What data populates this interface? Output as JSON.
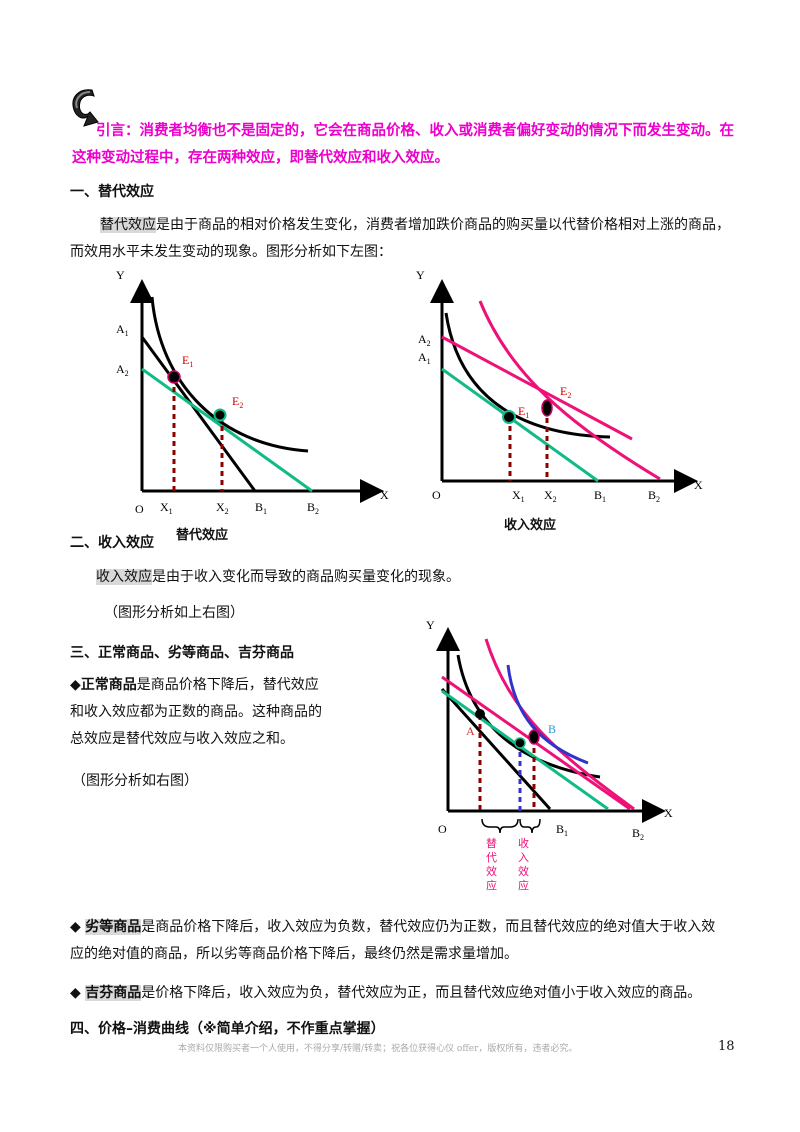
{
  "intro": "引言：消费者均衡也不是固定的，它会在商品价格、收入或消费者偏好变动的情况下而发生变动。在这种变动过程中，存在两种效应，即替代效应和收入效应。",
  "s1": {
    "heading": "一、替代效应",
    "term": "替代效应",
    "text1": "是由于商品的相对价格发生变化，消费者增加跌价商品的购买量以代替价格相对上涨的商品，",
    "text2": "而效用水平未发生变动的现象。图形分析如下左图："
  },
  "fig1": {
    "caption": "替代效应",
    "y": "Y",
    "x": "X",
    "o": "O",
    "A1": "A",
    "A1s": "1",
    "A2": "A",
    "A2s": "2",
    "E1": "E",
    "E1s": "1",
    "E2": "E",
    "E2s": "2",
    "X1": "X",
    "X1s": "1",
    "X2": "X",
    "X2s": "2",
    "B1": "B",
    "B1s": "1",
    "B2": "B",
    "B2s": "2"
  },
  "fig2": {
    "caption": "收入效应",
    "y": "Y",
    "x": "X",
    "o": "O",
    "A2": "A",
    "A2s": "2",
    "A1": "A",
    "A1s": "1",
    "E1": "E",
    "E1s": "1",
    "E2": "E",
    "E2s": "2",
    "X1": "X",
    "X1s": "1",
    "X2": "X",
    "X2s": "2",
    "B1": "B",
    "B1s": "1",
    "B2": "B",
    "B2s": "2"
  },
  "s2": {
    "heading": "二、收入效应",
    "term": "收入效应",
    "text": "是由于收入变化而导致的商品购买量变化的现象。",
    "note": "（图形分析如上右图）"
  },
  "s3": {
    "heading": "三、正常商品、劣等商品、吉芬商品",
    "normal_bullet": "◆",
    "normal_term": "正常商品",
    "normal_l1": "是商品价格下降后，替代效应",
    "normal_l2": "和收入效应都为正数的商品。这种商品的",
    "normal_l3": "总效应是替代效应与收入效应之和。",
    "normal_note": "（图形分析如右图）",
    "inferior_bullet": "◆",
    "inferior_term": "劣等商品",
    "inferior_l1": "是商品价格下降后，收入效应为负数，替代效应仍为正数，而且替代效应的绝对值大于收入效",
    "inferior_l2": "应的绝对值的商品，所以劣等商品价格下降后，最终仍然是需求量增加。",
    "giffen_bullet": "◆",
    "giffen_term": "吉芬商品",
    "giffen_text": "是价格下降后，收入效应为负，替代效应为正，而且替代效应绝对值小于收入效应的商品。"
  },
  "fig3": {
    "y": "Y",
    "x": "X",
    "o": "O",
    "A": "A",
    "Bpt": "B",
    "B1": "B",
    "B1s": "1",
    "B2": "B",
    "B2s": "2",
    "sub_label": [
      "替",
      "代",
      "效",
      "应"
    ],
    "inc_label": [
      "收",
      "入",
      "效",
      "应"
    ]
  },
  "s4": {
    "heading": "四、价格–消费曲线（※简单介绍，不作重点掌握）"
  },
  "footer": {
    "note": "本资料仅限购买者一个人使用，不得分享/转赠/转卖；祝各位获得心仪 offer，版权所有，违者必究。",
    "page": "18"
  },
  "colors": {
    "magenta": "#ee00cc",
    "pink": "#ee1177",
    "green": "#11bb88",
    "darkred": "#8b0000",
    "blue": "#3333cc",
    "pen": "#2277dd"
  }
}
